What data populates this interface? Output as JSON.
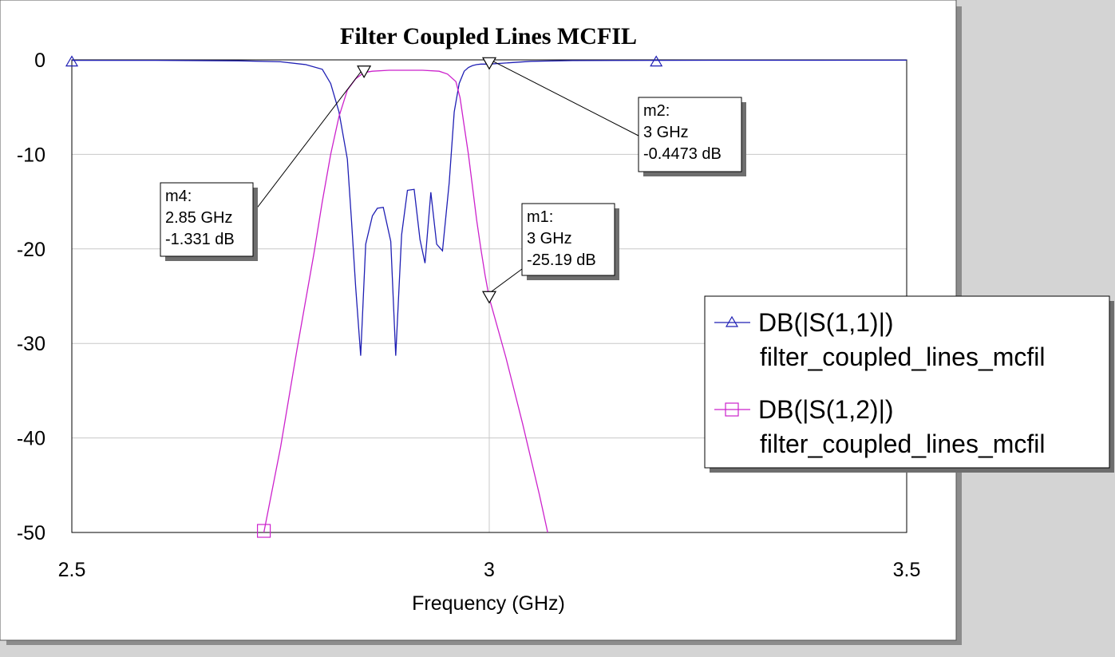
{
  "window": {
    "background": "#d4d4d4",
    "panel": "#ffffff",
    "panel_shadow": "#8c8c8c"
  },
  "chart_data": {
    "type": "line",
    "title": "Filter Coupled Lines MCFIL",
    "xlabel": "Frequency (GHz)",
    "ylabel": "",
    "xlim": [
      2.5,
      3.5
    ],
    "ylim": [
      -50,
      0
    ],
    "xticks": [
      2.5,
      3,
      3.5
    ],
    "xtick_labels": [
      "2.5",
      "3",
      "3.5"
    ],
    "yticks": [
      0,
      -10,
      -20,
      -30,
      -40,
      -50
    ],
    "ytick_labels": [
      "0",
      "-10",
      "-20",
      "-30",
      "-40",
      "-50"
    ],
    "grid": true,
    "legend_position": "right",
    "series": [
      {
        "name": "DB(|S(1,1)|)",
        "source": "filter_coupled_lines_mcfil",
        "color": "#1f1fb4",
        "marker": "triangle-up",
        "marker_x": [
          2.5,
          3.2
        ],
        "x": [
          2.5,
          2.6,
          2.7,
          2.75,
          2.78,
          2.8,
          2.81,
          2.82,
          2.83,
          2.835,
          2.84,
          2.846,
          2.852,
          2.86,
          2.866,
          2.873,
          2.882,
          2.888,
          2.895,
          2.902,
          2.91,
          2.917,
          2.923,
          2.93,
          2.937,
          2.944,
          2.952,
          2.958,
          2.964,
          2.97,
          2.975,
          2.98,
          2.985,
          2.99,
          3.0,
          3.05,
          3.1,
          3.2,
          3.3,
          3.4,
          3.5
        ],
        "y": [
          -0.05,
          -0.05,
          -0.1,
          -0.2,
          -0.5,
          -1.0,
          -2.5,
          -5.5,
          -10.5,
          -17,
          -24,
          -31.3,
          -19.5,
          -16.5,
          -15.7,
          -15.6,
          -19.2,
          -31.3,
          -18.5,
          -13.8,
          -13.7,
          -19,
          -21.5,
          -14,
          -19.5,
          -20.2,
          -13,
          -5.5,
          -2.5,
          -1.2,
          -0.8,
          -0.6,
          -0.5,
          -0.45,
          -0.4473,
          -0.15,
          -0.08,
          -0.05,
          -0.04,
          -0.04,
          -0.03
        ]
      },
      {
        "name": "DB(|S(1,2)|)",
        "source": "filter_coupled_lines_mcfil",
        "color": "#cc22cc",
        "marker": "square",
        "marker_x": [
          2.73
        ],
        "x": [
          2.73,
          2.75,
          2.77,
          2.79,
          2.8,
          2.81,
          2.82,
          2.83,
          2.84,
          2.85,
          2.86,
          2.88,
          2.9,
          2.92,
          2.94,
          2.95,
          2.96,
          2.965,
          2.97,
          2.975,
          2.98,
          2.985,
          2.99,
          2.995,
          3.0,
          3.02,
          3.04,
          3.06,
          3.07
        ],
        "y": [
          -50,
          -41,
          -30.5,
          -20.5,
          -15,
          -10,
          -6,
          -3.2,
          -2,
          -1.331,
          -1.2,
          -1.1,
          -1.1,
          -1.1,
          -1.2,
          -1.5,
          -2.3,
          -4,
          -7,
          -10,
          -13.5,
          -17,
          -20,
          -22.8,
          -25.19,
          -31.5,
          -38.5,
          -46,
          -50
        ]
      }
    ],
    "markers": [
      {
        "id": "m1",
        "lines": [
          "m1:",
          "3 GHz",
          "-25.19 dB"
        ],
        "series": 1,
        "x": 3.0,
        "y": -25.19
      },
      {
        "id": "m2",
        "lines": [
          "m2:",
          "3 GHz",
          "-0.4473 dB"
        ],
        "series": 0,
        "x": 3.0,
        "y": -0.4473
      },
      {
        "id": "m4",
        "lines": [
          "m4:",
          "2.85 GHz",
          "-1.331 dB"
        ],
        "series": 1,
        "x": 2.85,
        "y": -1.331
      }
    ],
    "legend": [
      {
        "label": "DB(|S(1,1)|)",
        "sub": "filter_coupled_lines_mcfil",
        "color": "#1f1fb4",
        "marker": "triangle-up"
      },
      {
        "label": "DB(|S(1,2)|)",
        "sub": "filter_coupled_lines_mcfil",
        "color": "#cc22cc",
        "marker": "square"
      }
    ]
  }
}
